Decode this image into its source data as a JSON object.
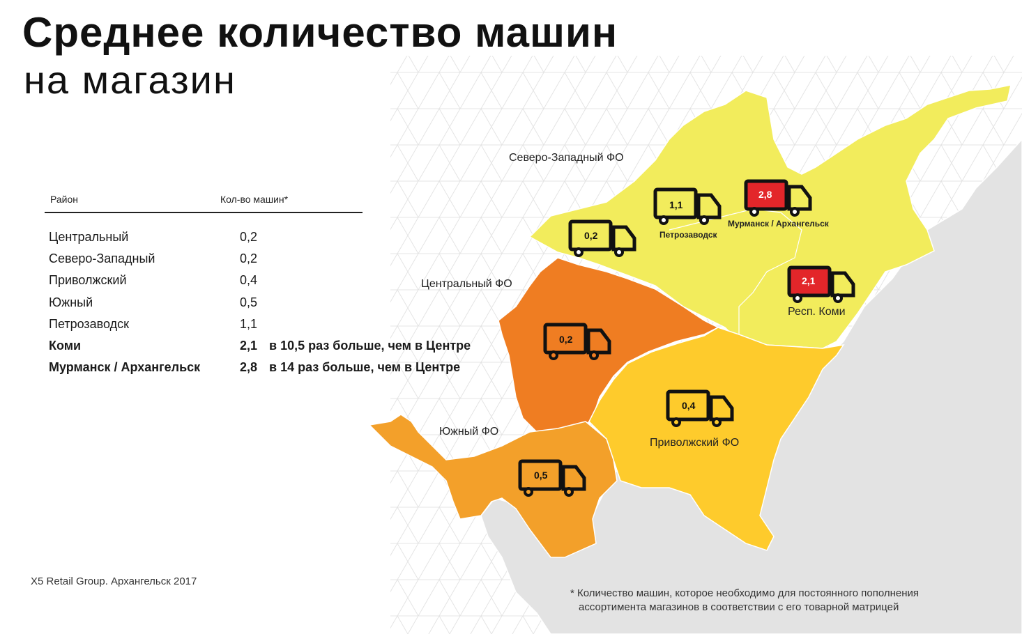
{
  "title": {
    "bold": "Среднее количество машин",
    "light": "на магазин"
  },
  "table": {
    "col_region": "Район",
    "col_count": "Кол-во машин*",
    "rows": [
      {
        "name": "Центральный",
        "value": "0,2",
        "note": ""
      },
      {
        "name": "Северо-Западный",
        "value": "0,2",
        "note": ""
      },
      {
        "name": "Приволжский",
        "value": "0,4",
        "note": ""
      },
      {
        "name": "Южный",
        "value": "0,5",
        "note": ""
      },
      {
        "name": "Петрозаводск",
        "value": "1,1",
        "note": ""
      },
      {
        "name": "Коми",
        "value": "2,1",
        "note": "в 10,5 раз больше, чем в Центре"
      },
      {
        "name": "Мурманск / Архангельск",
        "value": "2,8",
        "note": "в 14 раз больше, чем в Центре"
      }
    ]
  },
  "map": {
    "region_labels": {
      "north_west": "Северо-Западный ФО",
      "central": "Центральный ФО",
      "south": "Южный ФО",
      "volga": "Приволжский ФО",
      "komi": "Респ. Коми"
    },
    "trucks": {
      "central": {
        "value": "0,2",
        "label": ""
      },
      "north_west": {
        "value": "0,2",
        "label": ""
      },
      "petrozavodsk": {
        "value": "1,1",
        "label": "Петрозаводск"
      },
      "murmansk": {
        "value": "2,8",
        "label": "Мурманск / Архангельск"
      },
      "komi": {
        "value": "2,1",
        "label": ""
      },
      "volga": {
        "value": "0,4",
        "label": ""
      },
      "south": {
        "value": "0,5",
        "label": ""
      }
    },
    "colors": {
      "north_west": "#f2ec5c",
      "central": "#ef7d22",
      "volga": "#fecb2c",
      "south": "#f3a02a",
      "other": "#e3e3e3",
      "highlight_truck": "#e3262a"
    }
  },
  "source": "X5 Retail Group. Архангельск 2017",
  "footnote": {
    "line1": "* Количество машин, которое необходимо для постоянного пополнения",
    "line2": "ассортимента магазинов в соответствии с его товарной матрицей"
  }
}
